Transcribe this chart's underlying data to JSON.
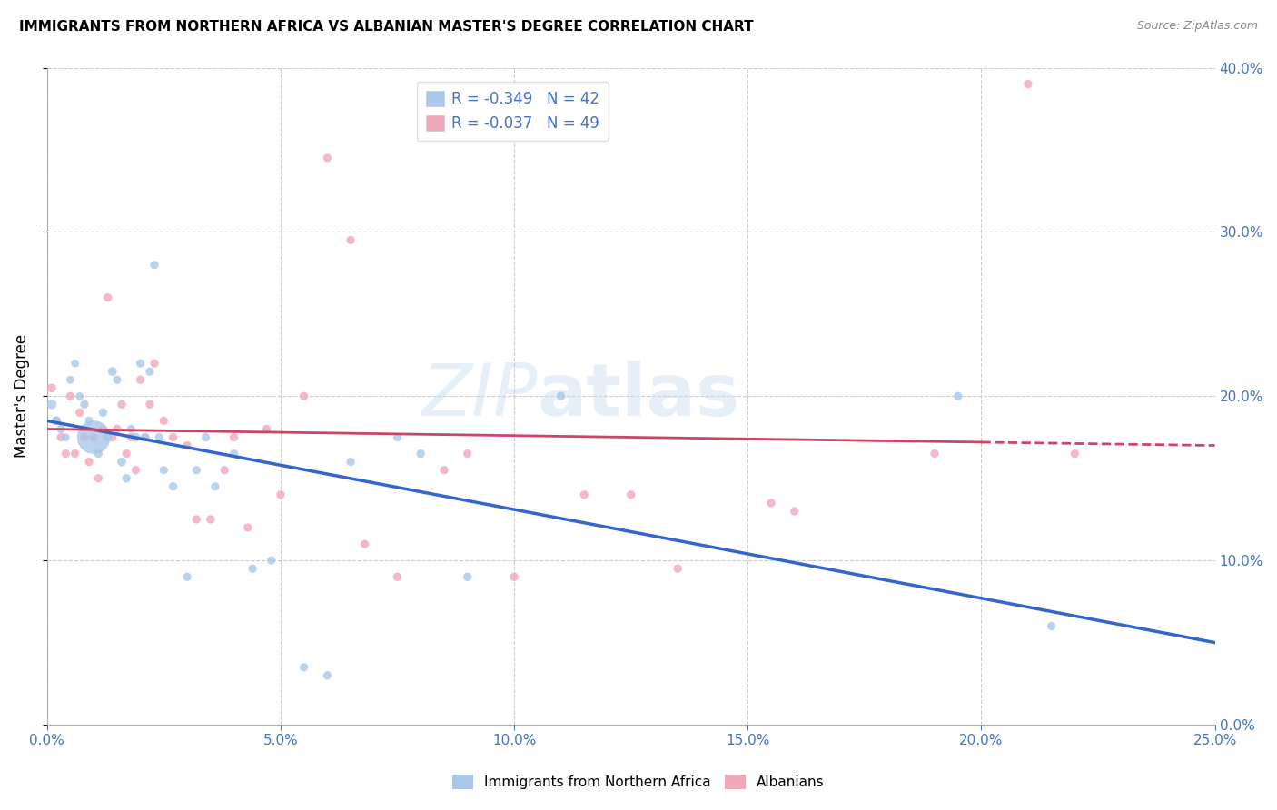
{
  "title": "IMMIGRANTS FROM NORTHERN AFRICA VS ALBANIAN MASTER'S DEGREE CORRELATION CHART",
  "source": "Source: ZipAtlas.com",
  "ylabel": "Master's Degree",
  "xlim": [
    0.0,
    0.25
  ],
  "ylim": [
    0.0,
    0.4
  ],
  "legend_R1": "R = -0.349",
  "legend_N1": "N = 42",
  "legend_R2": "R = -0.037",
  "legend_N2": "N = 49",
  "blue_color": "#a8c8e8",
  "pink_color": "#f0a8b8",
  "blue_line_color": "#3366cc",
  "pink_line_color": "#cc4466",
  "watermark": "ZIPatlas",
  "blue_x": [
    0.001,
    0.002,
    0.003,
    0.004,
    0.005,
    0.006,
    0.007,
    0.008,
    0.009,
    0.01,
    0.011,
    0.012,
    0.013,
    0.014,
    0.015,
    0.016,
    0.017,
    0.018,
    0.019,
    0.02,
    0.021,
    0.022,
    0.023,
    0.024,
    0.025,
    0.027,
    0.03,
    0.032,
    0.034,
    0.036,
    0.04,
    0.044,
    0.048,
    0.055,
    0.06,
    0.065,
    0.075,
    0.08,
    0.09,
    0.11,
    0.195,
    0.215
  ],
  "blue_y": [
    0.195,
    0.185,
    0.18,
    0.175,
    0.21,
    0.22,
    0.2,
    0.195,
    0.185,
    0.175,
    0.165,
    0.19,
    0.175,
    0.215,
    0.21,
    0.16,
    0.15,
    0.18,
    0.175,
    0.22,
    0.175,
    0.215,
    0.28,
    0.175,
    0.155,
    0.145,
    0.09,
    0.155,
    0.175,
    0.145,
    0.165,
    0.095,
    0.1,
    0.035,
    0.03,
    0.16,
    0.175,
    0.165,
    0.09,
    0.2,
    0.2,
    0.06
  ],
  "blue_sizes": [
    60,
    50,
    45,
    40,
    40,
    40,
    40,
    45,
    45,
    700,
    45,
    45,
    50,
    50,
    45,
    50,
    45,
    45,
    50,
    45,
    45,
    45,
    45,
    45,
    45,
    45,
    45,
    45,
    45,
    45,
    45,
    45,
    45,
    45,
    45,
    45,
    45,
    45,
    45,
    45,
    45,
    45
  ],
  "pink_x": [
    0.001,
    0.002,
    0.003,
    0.004,
    0.005,
    0.006,
    0.007,
    0.008,
    0.009,
    0.01,
    0.011,
    0.012,
    0.013,
    0.014,
    0.015,
    0.016,
    0.017,
    0.018,
    0.019,
    0.02,
    0.021,
    0.022,
    0.023,
    0.025,
    0.027,
    0.03,
    0.032,
    0.035,
    0.038,
    0.04,
    0.043,
    0.047,
    0.05,
    0.055,
    0.06,
    0.065,
    0.068,
    0.075,
    0.085,
    0.09,
    0.1,
    0.115,
    0.125,
    0.135,
    0.155,
    0.16,
    0.19,
    0.21,
    0.22
  ],
  "pink_y": [
    0.205,
    0.185,
    0.175,
    0.165,
    0.2,
    0.165,
    0.19,
    0.175,
    0.16,
    0.175,
    0.15,
    0.18,
    0.26,
    0.175,
    0.18,
    0.195,
    0.165,
    0.175,
    0.155,
    0.21,
    0.175,
    0.195,
    0.22,
    0.185,
    0.175,
    0.17,
    0.125,
    0.125,
    0.155,
    0.175,
    0.12,
    0.18,
    0.14,
    0.2,
    0.345,
    0.295,
    0.11,
    0.09,
    0.155,
    0.165,
    0.09,
    0.14,
    0.14,
    0.095,
    0.135,
    0.13,
    0.165,
    0.39,
    0.165
  ],
  "pink_sizes": [
    50,
    45,
    45,
    45,
    45,
    45,
    45,
    45,
    45,
    45,
    45,
    45,
    45,
    45,
    45,
    45,
    45,
    45,
    45,
    45,
    45,
    45,
    45,
    45,
    45,
    45,
    45,
    45,
    45,
    45,
    45,
    45,
    45,
    45,
    45,
    45,
    45,
    45,
    45,
    45,
    45,
    45,
    45,
    45,
    45,
    45,
    45,
    45,
    45
  ]
}
